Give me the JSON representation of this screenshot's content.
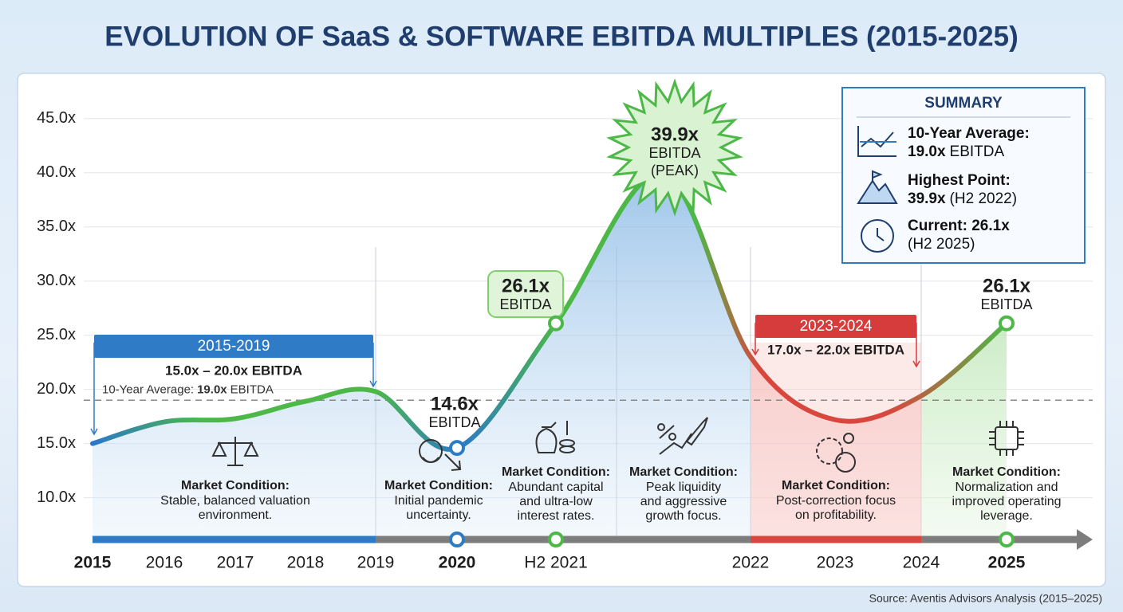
{
  "chart_data": {
    "type": "line",
    "title": "EVOLUTION OF SaaS & SOFTWARE EBITDA MULTIPLES (2015-2025)",
    "categories": [
      "2015",
      "2016",
      "2017",
      "2018",
      "2019",
      "2020",
      "H2 2021",
      null,
      "2022",
      "2023",
      "2024",
      "2025"
    ],
    "values": [
      15.0,
      17.0,
      17.3,
      18.9,
      19.8,
      14.6,
      26.1,
      39.9,
      23.0,
      17.2,
      19.4,
      26.1
    ],
    "value_labels": [
      null,
      null,
      null,
      null,
      null,
      "14.6x",
      "26.1x",
      "39.9x",
      null,
      null,
      null,
      "26.1x"
    ],
    "value_sublabels": [
      null,
      null,
      null,
      null,
      null,
      [
        "EBITDA"
      ],
      [
        "EBITDA"
      ],
      [
        "EBITDA",
        "(PEAK)"
      ],
      null,
      null,
      null,
      [
        "EBITDA"
      ]
    ],
    "color": "#2e7bc4",
    "ylim": [
      6,
      48
    ],
    "yticks": [
      {
        "value": 10,
        "label": "10.0x"
      },
      {
        "value": 15,
        "label": "15.0x"
      },
      {
        "value": 20,
        "label": "20.0x"
      },
      {
        "value": 25,
        "label": "25.0x"
      },
      {
        "value": 30,
        "label": "30.0x"
      },
      {
        "value": 35,
        "label": "35.0x"
      },
      {
        "value": 40,
        "label": "40.0x"
      },
      {
        "value": 45,
        "label": "45.0x"
      }
    ],
    "grid": true,
    "average": {
      "value": 19.0,
      "text": "10-Year Average:",
      "value_label": "19.0x",
      "unit": "EBITDA"
    },
    "periods": [
      {
        "label": "2015-2019",
        "range": "15.0x – 20.0x EBITDA",
        "color": "#2f7bc6"
      },
      {
        "label": "2023-2024",
        "range": "17.0x – 22.0x EBITDA",
        "color": "#d63c3c"
      }
    ],
    "conditions": [
      {
        "title": "Market Condition:",
        "lines": [
          "Stable, balanced valuation",
          "environment."
        ]
      },
      {
        "title": "Market Condition:",
        "lines": [
          "Initial pandemic",
          "uncertainty."
        ]
      },
      {
        "title": "Market Condition:",
        "lines": [
          "Abundant capital",
          "and ultra-low",
          "interest rates."
        ]
      },
      {
        "title": "Market Condition:",
        "lines": [
          "Peak liquidity",
          "and aggressive",
          "growth focus."
        ]
      },
      {
        "title": "Market Condition:",
        "lines": [
          "Post-correction focus",
          "on profitability."
        ]
      },
      {
        "title": "Market Condition:",
        "lines": [
          "Normalization and",
          "improved operating",
          "leverage."
        ]
      }
    ],
    "summary": {
      "title": "SUMMARY",
      "items": [
        {
          "lines": [
            {
              "b": "10-Year Average:"
            },
            {
              "b": "19.0x",
              "r": "EBITDA"
            }
          ]
        },
        {
          "lines": [
            {
              "b": "Highest Point:"
            },
            {
              "b": "39.9x",
              "r": "(H2 2022)"
            }
          ]
        },
        {
          "lines": [
            {
              "b": "Current: 26.1x"
            },
            {
              "r": "(H2 2025)"
            }
          ]
        }
      ]
    },
    "source": "Source: Aventis Advisors Analysis (2015–2025)"
  }
}
